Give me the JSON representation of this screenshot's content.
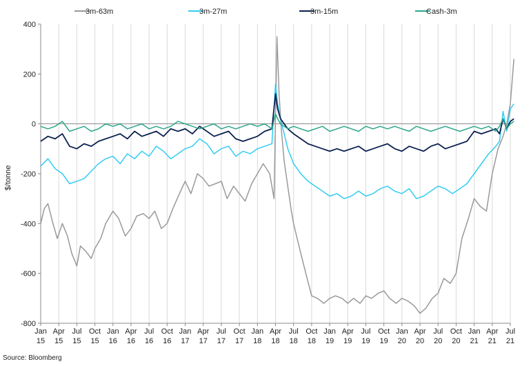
{
  "chart_data": {
    "type": "line",
    "ylabel": "$/tonne",
    "ylim": [
      -800,
      400
    ],
    "yticks": [
      400,
      200,
      0,
      -200,
      -400,
      -600,
      -800
    ],
    "legend_position": "top",
    "grid": "vertical",
    "x_ticks": [
      {
        "month": "Jan",
        "year": "15",
        "t": 0
      },
      {
        "month": "Apr",
        "year": "15",
        "t": 0.25
      },
      {
        "month": "Jul",
        "year": "15",
        "t": 0.5
      },
      {
        "month": "Oct",
        "year": "15",
        "t": 0.75
      },
      {
        "month": "Jan",
        "year": "16",
        "t": 1
      },
      {
        "month": "Apr",
        "year": "16",
        "t": 1.25
      },
      {
        "month": "Jul",
        "year": "16",
        "t": 1.5
      },
      {
        "month": "Oct",
        "year": "16",
        "t": 1.75
      },
      {
        "month": "Jan",
        "year": "17",
        "t": 2
      },
      {
        "month": "Apr",
        "year": "17",
        "t": 2.25
      },
      {
        "month": "Jul",
        "year": "17",
        "t": 2.5
      },
      {
        "month": "Oct",
        "year": "17",
        "t": 2.75
      },
      {
        "month": "Jan",
        "year": "18",
        "t": 3
      },
      {
        "month": "Apr",
        "year": "18",
        "t": 3.25
      },
      {
        "month": "Jul",
        "year": "18",
        "t": 3.5
      },
      {
        "month": "Oct",
        "year": "18",
        "t": 3.75
      },
      {
        "month": "Jan",
        "year": "19",
        "t": 4
      },
      {
        "month": "Apr",
        "year": "19",
        "t": 4.25
      },
      {
        "month": "Jul",
        "year": "19",
        "t": 4.5
      },
      {
        "month": "Oct",
        "year": "19",
        "t": 4.75
      },
      {
        "month": "Jan",
        "year": "20",
        "t": 5
      },
      {
        "month": "Apr",
        "year": "20",
        "t": 5.25
      },
      {
        "month": "Jul",
        "year": "20",
        "t": 5.5
      },
      {
        "month": "Oct",
        "year": "20",
        "t": 5.75
      },
      {
        "month": "Jan",
        "year": "21",
        "t": 6
      },
      {
        "month": "Apr",
        "year": "21",
        "t": 6.25
      },
      {
        "month": "Jul",
        "year": "21",
        "t": 6.5
      }
    ],
    "series": [
      {
        "name": "3m-63m",
        "color": "#999999",
        "x": [
          0,
          0.05,
          0.1,
          0.17,
          0.23,
          0.3,
          0.37,
          0.43,
          0.5,
          0.55,
          0.62,
          0.7,
          0.75,
          0.83,
          0.9,
          1.0,
          1.08,
          1.17,
          1.25,
          1.33,
          1.42,
          1.5,
          1.58,
          1.67,
          1.75,
          1.83,
          1.92,
          2.0,
          2.08,
          2.17,
          2.25,
          2.33,
          2.42,
          2.5,
          2.58,
          2.67,
          2.75,
          2.83,
          2.92,
          3.0,
          3.08,
          3.17,
          3.23,
          3.27,
          3.3,
          3.33,
          3.37,
          3.42,
          3.47,
          3.5,
          3.55,
          3.6,
          3.67,
          3.75,
          3.83,
          3.92,
          4.0,
          4.08,
          4.17,
          4.25,
          4.33,
          4.42,
          4.5,
          4.58,
          4.67,
          4.75,
          4.83,
          4.92,
          5.0,
          5.08,
          5.17,
          5.25,
          5.33,
          5.42,
          5.5,
          5.58,
          5.67,
          5.75,
          5.83,
          5.92,
          6.0,
          6.08,
          6.17,
          6.25,
          6.33,
          6.4,
          6.45,
          6.5,
          6.55
        ],
        "values": [
          -400,
          -340,
          -320,
          -400,
          -460,
          -400,
          -450,
          -520,
          -570,
          -490,
          -510,
          -540,
          -500,
          -460,
          -400,
          -350,
          -380,
          -450,
          -420,
          -370,
          -360,
          -380,
          -350,
          -420,
          -400,
          -340,
          -280,
          -230,
          -280,
          -200,
          -220,
          -250,
          -240,
          -230,
          -300,
          -250,
          -280,
          -310,
          -240,
          -200,
          -160,
          -200,
          -300,
          350,
          120,
          -20,
          -150,
          -250,
          -350,
          -400,
          -460,
          -520,
          -600,
          -690,
          -700,
          -720,
          -700,
          -690,
          -700,
          -720,
          -700,
          -720,
          -690,
          -700,
          -680,
          -670,
          -700,
          -720,
          -700,
          -710,
          -730,
          -760,
          -740,
          -700,
          -680,
          -620,
          -640,
          -600,
          -460,
          -380,
          -300,
          -330,
          -350,
          -200,
          -100,
          -50,
          0,
          80,
          260
        ]
      },
      {
        "name": "3m-27m",
        "color": "#33ccf2",
        "x": [
          0,
          0.1,
          0.2,
          0.3,
          0.4,
          0.5,
          0.6,
          0.7,
          0.8,
          0.9,
          1.0,
          1.1,
          1.2,
          1.3,
          1.4,
          1.5,
          1.6,
          1.7,
          1.8,
          1.9,
          2.0,
          2.1,
          2.2,
          2.3,
          2.4,
          2.5,
          2.6,
          2.7,
          2.8,
          2.9,
          3.0,
          3.1,
          3.2,
          3.25,
          3.28,
          3.32,
          3.37,
          3.42,
          3.5,
          3.6,
          3.7,
          3.8,
          3.9,
          4.0,
          4.1,
          4.2,
          4.3,
          4.4,
          4.5,
          4.6,
          4.7,
          4.8,
          4.9,
          5.0,
          5.1,
          5.2,
          5.3,
          5.4,
          5.5,
          5.6,
          5.7,
          5.8,
          5.9,
          6.0,
          6.1,
          6.2,
          6.3,
          6.35,
          6.4,
          6.45,
          6.5,
          6.55
        ],
        "values": [
          -170,
          -140,
          -180,
          -200,
          -240,
          -230,
          -220,
          -190,
          -160,
          -140,
          -130,
          -160,
          -120,
          -140,
          -110,
          -130,
          -90,
          -110,
          -140,
          -120,
          -100,
          -90,
          -60,
          -80,
          -120,
          -100,
          -90,
          -130,
          -110,
          -120,
          -100,
          -90,
          -80,
          160,
          80,
          20,
          -40,
          -100,
          -160,
          -200,
          -230,
          -250,
          -270,
          -290,
          -280,
          -300,
          -290,
          -270,
          -290,
          -280,
          -260,
          -250,
          -270,
          -280,
          -260,
          -300,
          -290,
          -270,
          -250,
          -260,
          -280,
          -260,
          -240,
          -200,
          -160,
          -120,
          -90,
          -70,
          50,
          -30,
          60,
          80
        ]
      },
      {
        "name": "3m-15m",
        "color": "#0b1f4f",
        "x": [
          0,
          0.1,
          0.2,
          0.3,
          0.4,
          0.5,
          0.6,
          0.7,
          0.8,
          0.9,
          1.0,
          1.1,
          1.2,
          1.3,
          1.4,
          1.5,
          1.6,
          1.7,
          1.8,
          1.9,
          2.0,
          2.1,
          2.2,
          2.3,
          2.4,
          2.5,
          2.6,
          2.7,
          2.8,
          2.9,
          3.0,
          3.1,
          3.2,
          3.25,
          3.28,
          3.32,
          3.37,
          3.42,
          3.5,
          3.6,
          3.7,
          3.8,
          3.9,
          4.0,
          4.1,
          4.2,
          4.3,
          4.4,
          4.5,
          4.6,
          4.7,
          4.8,
          4.9,
          5.0,
          5.1,
          5.2,
          5.3,
          5.4,
          5.5,
          5.6,
          5.7,
          5.8,
          5.9,
          6.0,
          6.1,
          6.2,
          6.3,
          6.35,
          6.4,
          6.45,
          6.5,
          6.55
        ],
        "values": [
          -70,
          -50,
          -60,
          -40,
          -90,
          -100,
          -80,
          -90,
          -70,
          -60,
          -50,
          -40,
          -60,
          -30,
          -50,
          -40,
          -30,
          -50,
          -20,
          -30,
          -20,
          -40,
          -10,
          -30,
          -50,
          -40,
          -30,
          -60,
          -70,
          -60,
          -50,
          -30,
          -20,
          120,
          60,
          20,
          0,
          -20,
          -40,
          -60,
          -80,
          -90,
          -100,
          -110,
          -100,
          -110,
          -100,
          -90,
          -110,
          -100,
          -90,
          -80,
          -100,
          -110,
          -90,
          -100,
          -110,
          -90,
          -80,
          -100,
          -90,
          -80,
          -70,
          -30,
          -40,
          -30,
          -20,
          -40,
          20,
          -20,
          10,
          20
        ]
      },
      {
        "name": "Cash-3m",
        "color": "#2aa58a",
        "x": [
          0,
          0.1,
          0.2,
          0.3,
          0.4,
          0.5,
          0.6,
          0.7,
          0.8,
          0.9,
          1.0,
          1.1,
          1.2,
          1.3,
          1.4,
          1.5,
          1.6,
          1.7,
          1.8,
          1.9,
          2.0,
          2.1,
          2.2,
          2.3,
          2.4,
          2.5,
          2.6,
          2.7,
          2.8,
          2.9,
          3.0,
          3.1,
          3.2,
          3.25,
          3.28,
          3.32,
          3.37,
          3.42,
          3.5,
          3.6,
          3.7,
          3.8,
          3.9,
          4.0,
          4.1,
          4.2,
          4.3,
          4.4,
          4.5,
          4.6,
          4.7,
          4.8,
          4.9,
          5.0,
          5.1,
          5.2,
          5.3,
          5.4,
          5.5,
          5.6,
          5.7,
          5.8,
          5.9,
          6.0,
          6.1,
          6.2,
          6.3,
          6.35,
          6.4,
          6.45,
          6.5,
          6.55
        ],
        "values": [
          -10,
          -20,
          -10,
          10,
          -30,
          -20,
          -10,
          -30,
          -20,
          0,
          -10,
          0,
          -20,
          -10,
          0,
          -20,
          -10,
          -20,
          -10,
          10,
          0,
          -10,
          -20,
          -10,
          0,
          -20,
          -10,
          -20,
          -10,
          0,
          -10,
          0,
          -20,
          40,
          20,
          0,
          -10,
          -20,
          -10,
          -20,
          -30,
          -20,
          -10,
          -30,
          -20,
          -10,
          -20,
          -30,
          -10,
          -20,
          -10,
          -20,
          -10,
          -20,
          -30,
          -10,
          -20,
          -30,
          -20,
          -10,
          -20,
          -30,
          -20,
          -10,
          -20,
          -10,
          -30,
          -10,
          20,
          -20,
          0,
          10
        ]
      }
    ]
  },
  "source_text": "Source: Bloomberg"
}
